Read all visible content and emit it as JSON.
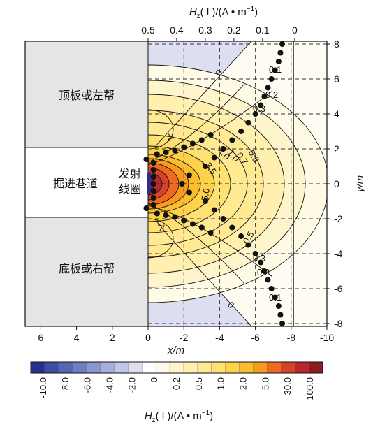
{
  "chart_data": {
    "type": "heatmap",
    "x_axis": {
      "label": "x/m",
      "range": [
        7,
        -10
      ],
      "ticks": [
        "6",
        "4",
        "2",
        "0",
        "-2",
        "-4",
        "-6",
        "-8",
        "-10"
      ],
      "tick_values": [
        6,
        4,
        2,
        0,
        -2,
        -4,
        -6,
        -8,
        -10
      ]
    },
    "y_axis": {
      "label": "y/m",
      "range": [
        -8.5,
        8.5
      ],
      "ticks": [
        "8",
        "6",
        "4",
        "2",
        "0",
        "-2",
        "-4",
        "-6",
        "-8"
      ],
      "tick_values": [
        8,
        6,
        4,
        2,
        0,
        -2,
        -4,
        -6,
        -8
      ]
    },
    "top_axis": {
      "label": "Hz(l)/(A·m⁻¹)",
      "label_main": "H",
      "label_sub": "z",
      "label_rest": "( l )/(A • m",
      "label_sup": "−1",
      "label_close": ")",
      "ticks": [
        "0.5",
        "0.4",
        "0.3",
        "0.2",
        "0.1",
        "0"
      ],
      "tick_values": [
        0.5,
        0.4,
        0.3,
        0.2,
        0.1,
        0.0
      ],
      "tick_x_m": [
        0.0,
        -1.6,
        -3.2,
        -4.8,
        -6.4,
        -8.2
      ]
    },
    "profile": {
      "x_m": -8.2,
      "points": [
        [
          -7.5,
          -8.0
        ],
        [
          -7.4,
          -7.5
        ],
        [
          -7.3,
          -7.0
        ],
        [
          -7.1,
          -6.5
        ],
        [
          -6.9,
          -6.0
        ],
        [
          -6.7,
          -5.5
        ],
        [
          -6.5,
          -5.0
        ],
        [
          -6.3,
          -4.5
        ],
        [
          -6.0,
          -4.0
        ],
        [
          -5.6,
          -3.5
        ],
        [
          -5.2,
          -3.0
        ],
        [
          -4.7,
          -2.5
        ],
        [
          -4.2,
          -2.0
        ],
        [
          -3.7,
          -1.5
        ],
        [
          -3.2,
          -1.0
        ],
        [
          -2.3,
          -0.5
        ],
        [
          -1.9,
          0.0
        ],
        [
          -2.3,
          0.5
        ],
        [
          -3.2,
          1.0
        ],
        [
          -3.7,
          1.5
        ],
        [
          -4.2,
          2.0
        ],
        [
          -4.7,
          2.5
        ],
        [
          -5.2,
          3.0
        ],
        [
          -5.6,
          3.5
        ],
        [
          -6.0,
          4.0
        ],
        [
          -6.3,
          4.5
        ],
        [
          -6.5,
          5.0
        ],
        [
          -6.7,
          5.5
        ],
        [
          -6.9,
          6.0
        ],
        [
          -7.1,
          6.5
        ],
        [
          -7.3,
          7.0
        ],
        [
          -7.4,
          7.5
        ],
        [
          -7.5,
          8.0
        ]
      ]
    },
    "contour_labels": [
      "-1",
      "-1",
      "0",
      "0",
      "0.1",
      "0.1",
      "0.2",
      "0.2",
      "0.3",
      "0.3",
      "0.5",
      "0.5",
      "0.7",
      "1.0",
      "2.0",
      "3.5",
      "5.0"
    ],
    "colorbar": {
      "label": "Hz(l)/(A·m⁻¹)",
      "tick_labels": [
        "-10.0",
        "-8.0",
        "-6.0",
        "-4.0",
        "-2.0",
        "0",
        "0.2",
        "0.5",
        "1.0",
        "2.0",
        "5.0",
        "30.0",
        "100.0"
      ],
      "colors": [
        "#2b2f8f",
        "#3b4ea6",
        "#5566b5",
        "#6f7ec2",
        "#8a96cf",
        "#a6aedc",
        "#c2c7e8",
        "#dcdff2",
        "#ffffff",
        "#fffbe6",
        "#fff5cc",
        "#fff0b0",
        "#ffe993",
        "#ffe072",
        "#fdd24a",
        "#fbbd2e",
        "#f79a1f",
        "#ee6a1e",
        "#d8412a",
        "#b6282c",
        "#8e1b22"
      ]
    },
    "regions": {
      "top_rock": "顶板或左帮",
      "tunnel": "掘进巷道",
      "bottom_rock": "底板或右帮",
      "coil": "发射线圈"
    },
    "grid": true,
    "colors": {
      "negative": "#dcdff2",
      "rock": "#e5e5e5",
      "profile": "#111111"
    }
  }
}
